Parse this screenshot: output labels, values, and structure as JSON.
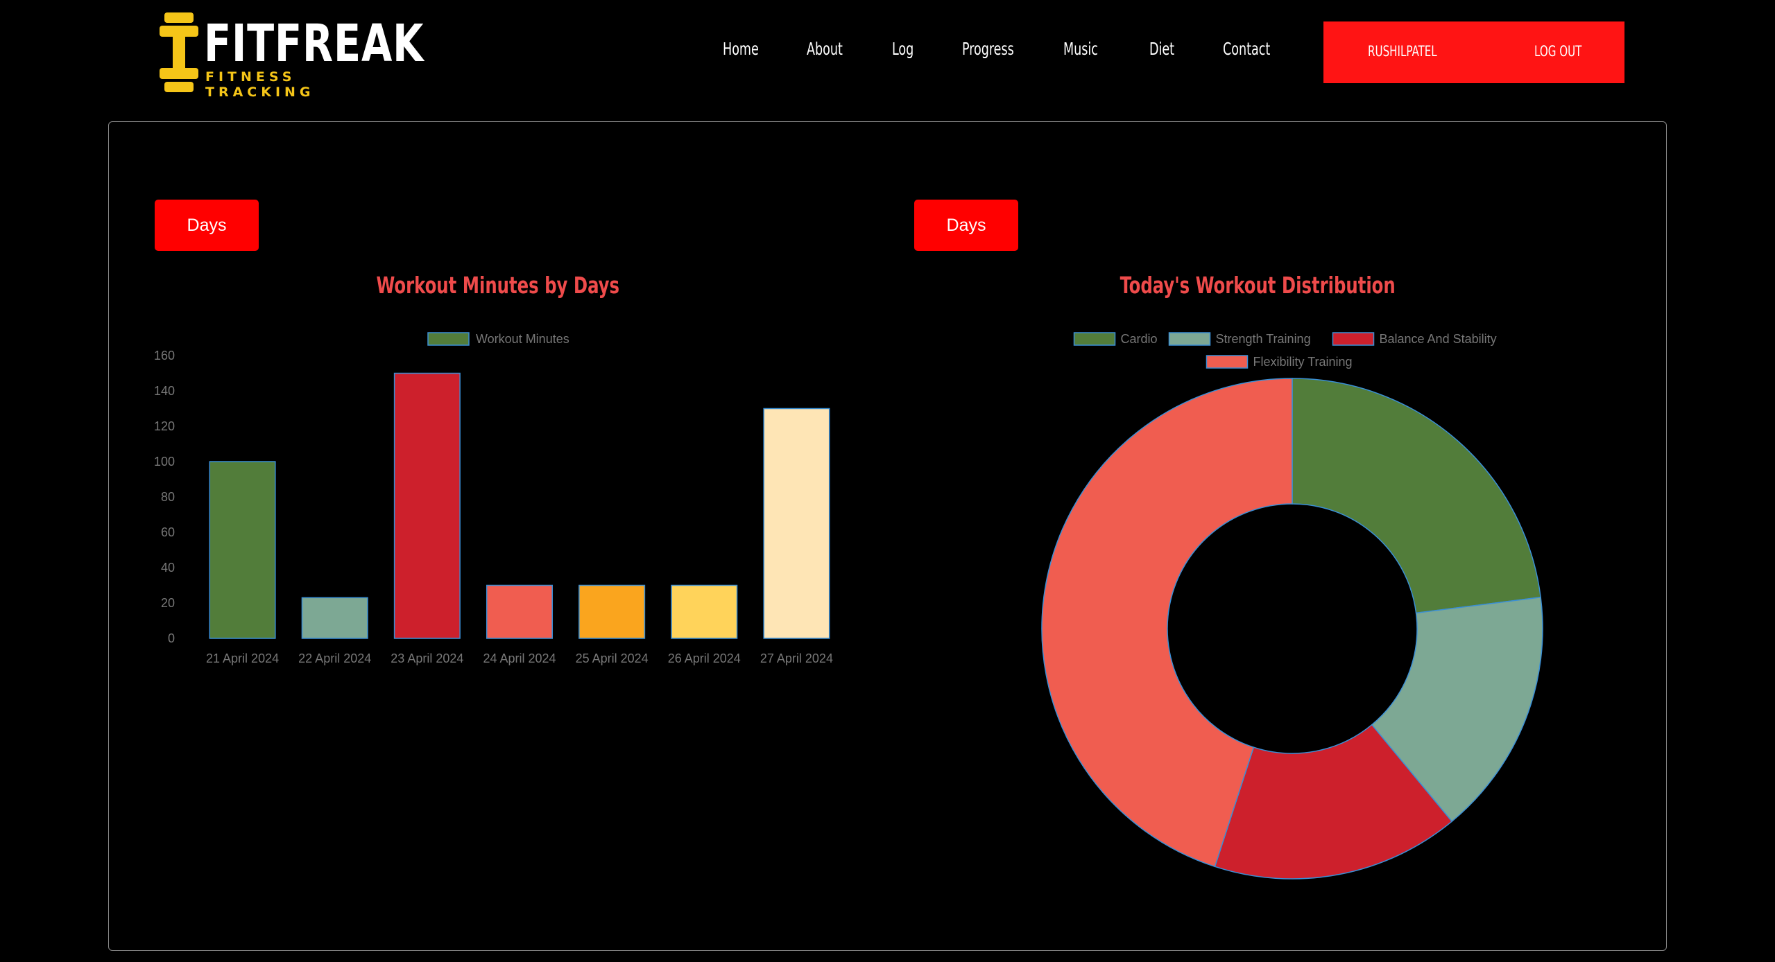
{
  "brand": {
    "name": "FITFREAK",
    "tagline": "FITNESS TRACKING",
    "accent": "#f5c518"
  },
  "nav": [
    "Home",
    "About",
    "Log",
    "Progress",
    "Music",
    "Diet",
    "Contact"
  ],
  "user": {
    "name": "RUSHILPATEL",
    "logout_label": "LOG OUT"
  },
  "panels": {
    "left": {
      "filter_button": "Days",
      "title": "Workout Minutes by Days"
    },
    "right": {
      "filter_button": "Days",
      "title": "Today's Workout Distribution"
    }
  },
  "chart_data": [
    {
      "type": "bar",
      "title": "Workout Minutes by Days",
      "categories": [
        "21 April 2024",
        "22 April 2024",
        "23 April 2024",
        "24 April 2024",
        "25 April 2024",
        "26 April 2024",
        "27 April 2024"
      ],
      "series": [
        {
          "name": "Workout Minutes",
          "values": [
            100,
            23,
            150,
            30,
            30,
            30,
            130
          ]
        }
      ],
      "colors": [
        "#527d3a",
        "#7da894",
        "#cd202c",
        "#f05d50",
        "#faa51e",
        "#ffd35a",
        "#fee5b5"
      ],
      "ylim": [
        0,
        160
      ],
      "yticks": [
        0,
        20,
        40,
        60,
        80,
        100,
        120,
        140,
        160
      ],
      "legend_swatch": "#527d3a",
      "legend": "top-center",
      "grid": false
    },
    {
      "type": "pie",
      "title": "Today's Workout Distribution",
      "labels": [
        "Cardio",
        "Strength Training",
        "Balance And Stability",
        "Flexibility Training"
      ],
      "values": [
        23,
        16,
        16,
        45
      ],
      "colors": [
        "#527d3a",
        "#7da894",
        "#cd202c",
        "#f05d50"
      ],
      "legend": "top-center"
    }
  ]
}
